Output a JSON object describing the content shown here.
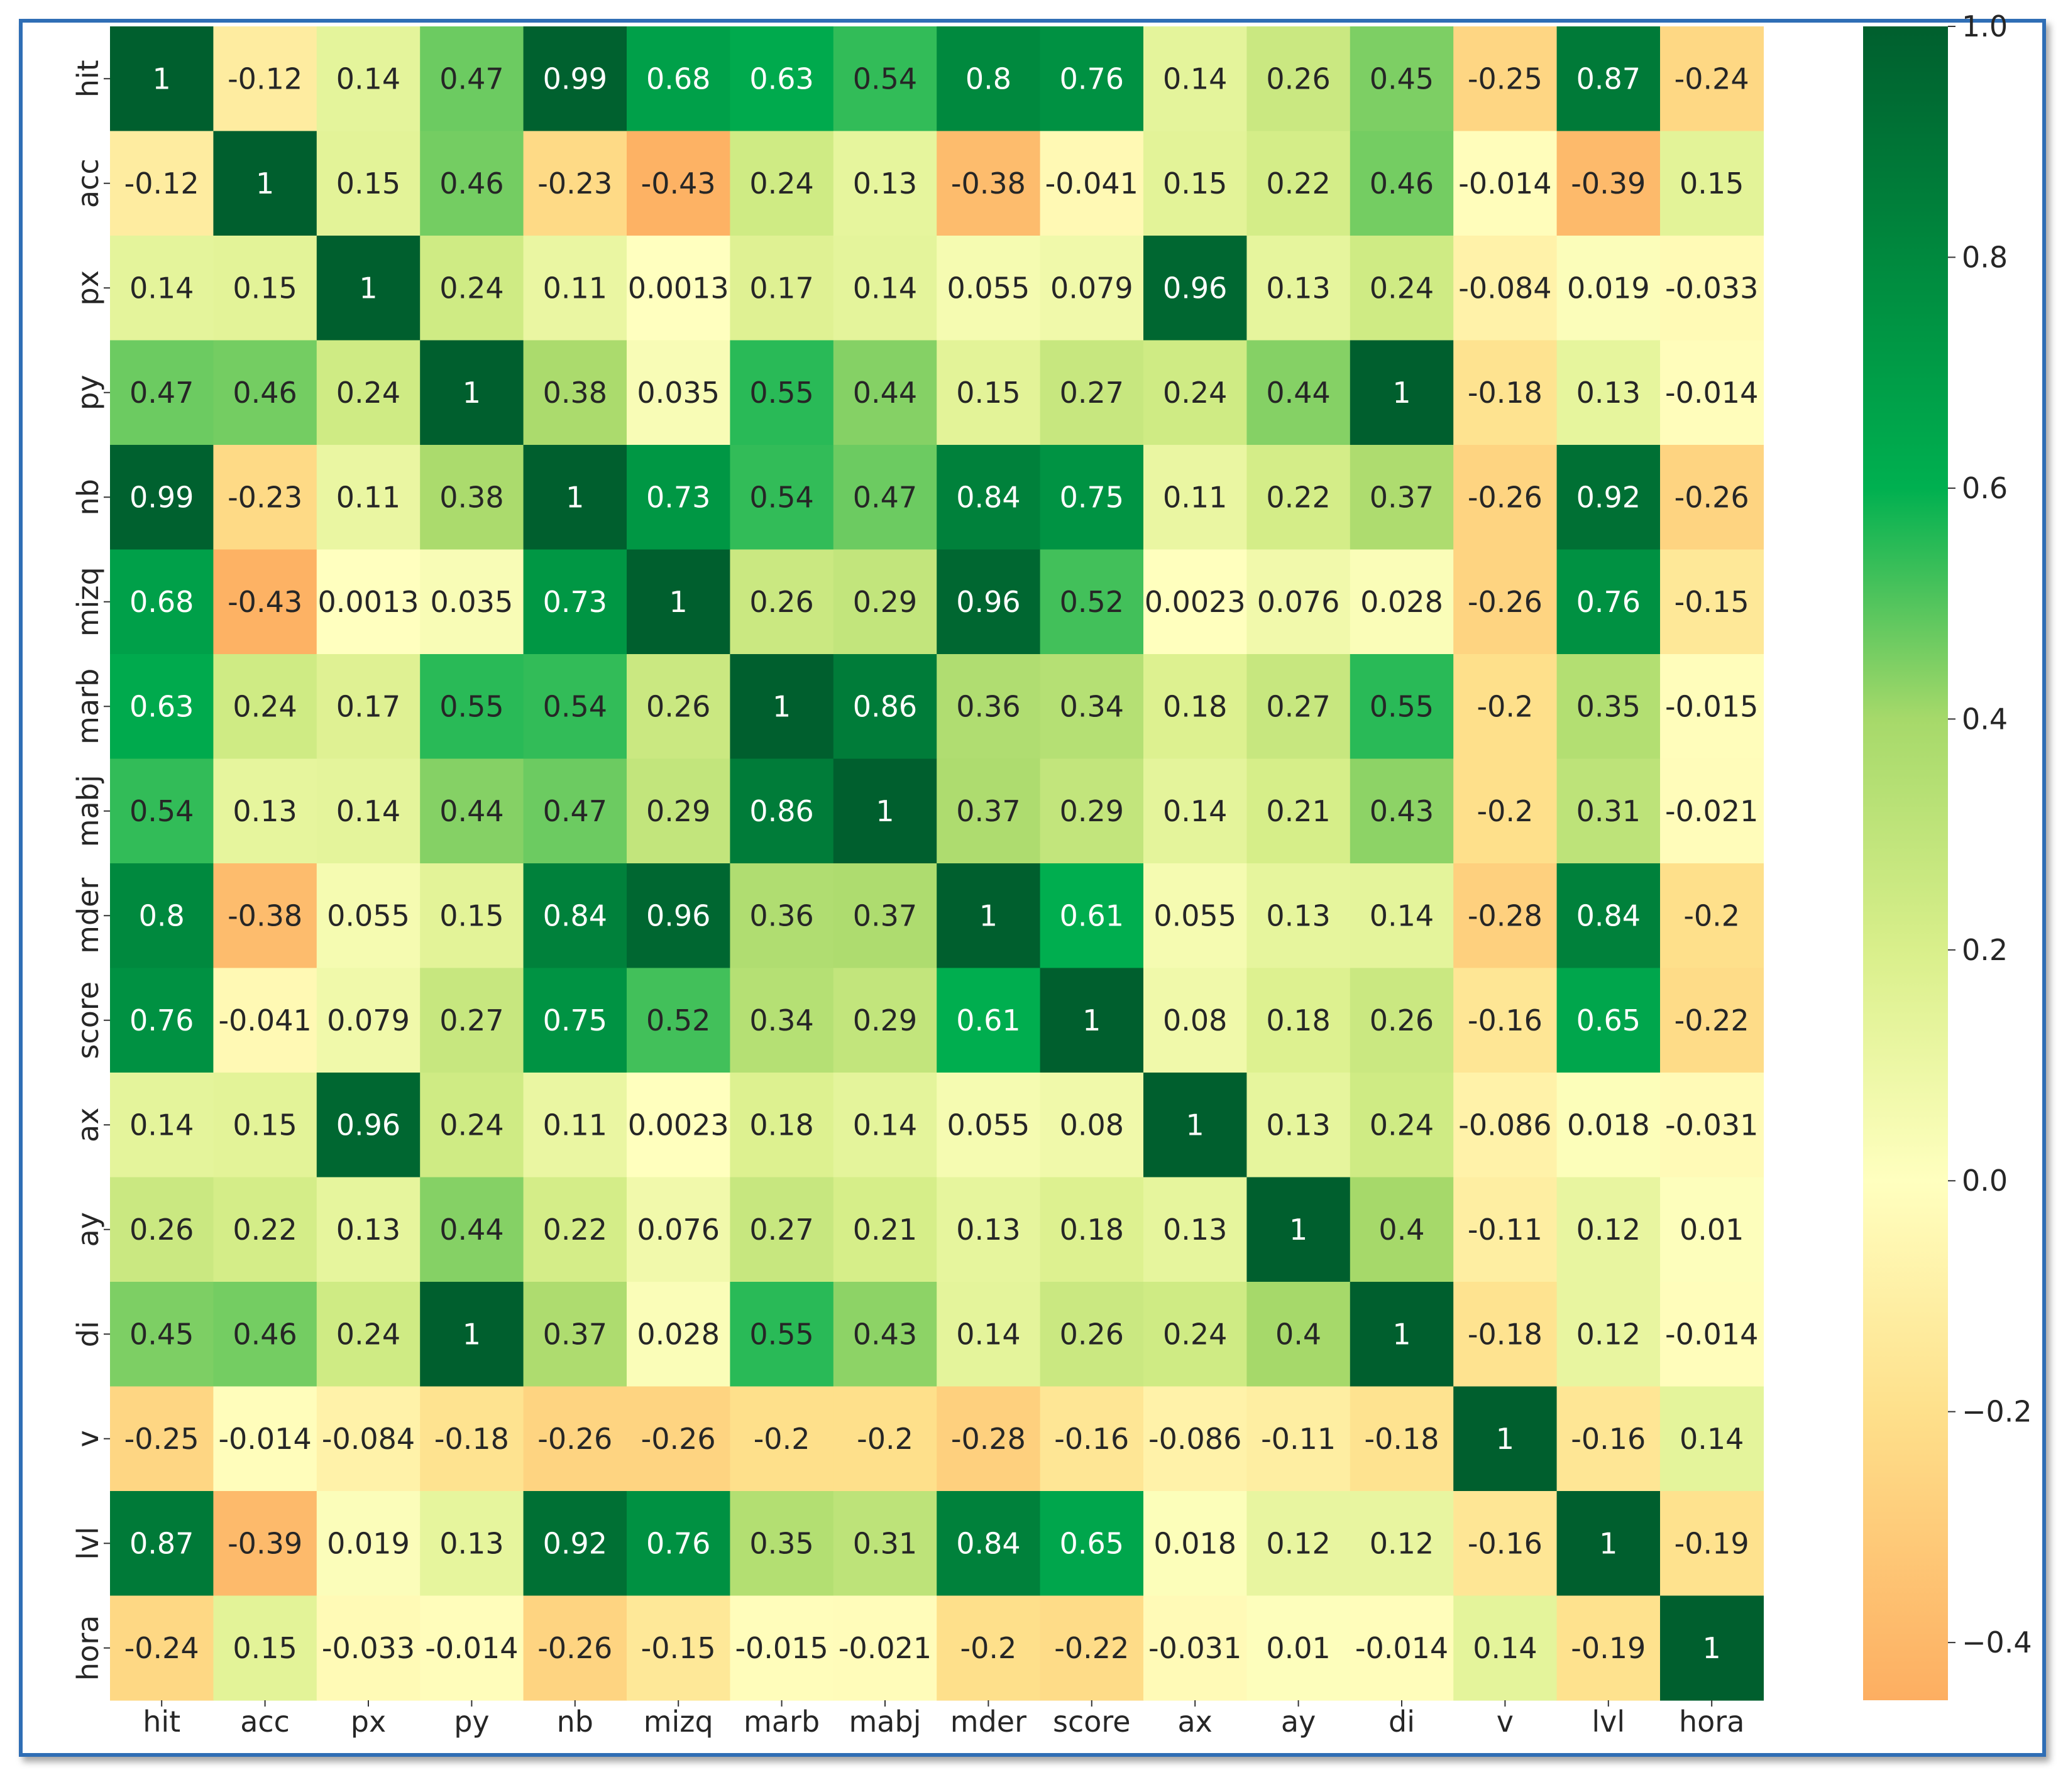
{
  "chart_data": {
    "type": "heatmap",
    "title": "",
    "xlabel": "",
    "ylabel": "",
    "labels": [
      "hit",
      "acc",
      "px",
      "py",
      "nb",
      "mizq",
      "marb",
      "mabj",
      "mder",
      "score",
      "ax",
      "ay",
      "di",
      "v",
      "lvl",
      "hora"
    ],
    "cells": [
      [
        "1",
        "-0.12",
        "0.14",
        "0.47",
        "0.99",
        "0.68",
        "0.63",
        "0.54",
        "0.8",
        "0.76",
        "0.14",
        "0.26",
        "0.45",
        "-0.25",
        "0.87",
        "-0.24"
      ],
      [
        "-0.12",
        "1",
        "0.15",
        "0.46",
        "-0.23",
        "-0.43",
        "0.24",
        "0.13",
        "-0.38",
        "-0.041",
        "0.15",
        "0.22",
        "0.46",
        "-0.014",
        "-0.39",
        "0.15"
      ],
      [
        "0.14",
        "0.15",
        "1",
        "0.24",
        "0.11",
        "0.0013",
        "0.17",
        "0.14",
        "0.055",
        "0.079",
        "0.96",
        "0.13",
        "0.24",
        "-0.084",
        "0.019",
        "-0.033"
      ],
      [
        "0.47",
        "0.46",
        "0.24",
        "1",
        "0.38",
        "0.035",
        "0.55",
        "0.44",
        "0.15",
        "0.27",
        "0.24",
        "0.44",
        "1",
        "-0.18",
        "0.13",
        "-0.014"
      ],
      [
        "0.99",
        "-0.23",
        "0.11",
        "0.38",
        "1",
        "0.73",
        "0.54",
        "0.47",
        "0.84",
        "0.75",
        "0.11",
        "0.22",
        "0.37",
        "-0.26",
        "0.92",
        "-0.26"
      ],
      [
        "0.68",
        "-0.43",
        "0.0013",
        "0.035",
        "0.73",
        "1",
        "0.26",
        "0.29",
        "0.96",
        "0.52",
        "0.0023",
        "0.076",
        "0.028",
        "-0.26",
        "0.76",
        "-0.15"
      ],
      [
        "0.63",
        "0.24",
        "0.17",
        "0.55",
        "0.54",
        "0.26",
        "1",
        "0.86",
        "0.36",
        "0.34",
        "0.18",
        "0.27",
        "0.55",
        "-0.2",
        "0.35",
        "-0.015"
      ],
      [
        "0.54",
        "0.13",
        "0.14",
        "0.44",
        "0.47",
        "0.29",
        "0.86",
        "1",
        "0.37",
        "0.29",
        "0.14",
        "0.21",
        "0.43",
        "-0.2",
        "0.31",
        "-0.021"
      ],
      [
        "0.8",
        "-0.38",
        "0.055",
        "0.15",
        "0.84",
        "0.96",
        "0.36",
        "0.37",
        "1",
        "0.61",
        "0.055",
        "0.13",
        "0.14",
        "-0.28",
        "0.84",
        "-0.2"
      ],
      [
        "0.76",
        "-0.041",
        "0.079",
        "0.27",
        "0.75",
        "0.52",
        "0.34",
        "0.29",
        "0.61",
        "1",
        "0.08",
        "0.18",
        "0.26",
        "-0.16",
        "0.65",
        "-0.22"
      ],
      [
        "0.14",
        "0.15",
        "0.96",
        "0.24",
        "0.11",
        "0.0023",
        "0.18",
        "0.14",
        "0.055",
        "0.08",
        "1",
        "0.13",
        "0.24",
        "-0.086",
        "0.018",
        "-0.031"
      ],
      [
        "0.26",
        "0.22",
        "0.13",
        "0.44",
        "0.22",
        "0.076",
        "0.27",
        "0.21",
        "0.13",
        "0.18",
        "0.13",
        "1",
        "0.4",
        "-0.11",
        "0.12",
        "0.01"
      ],
      [
        "0.45",
        "0.46",
        "0.24",
        "1",
        "0.37",
        "0.028",
        "0.55",
        "0.43",
        "0.14",
        "0.26",
        "0.24",
        "0.4",
        "1",
        "-0.18",
        "0.12",
        "-0.014"
      ],
      [
        "-0.25",
        "-0.014",
        "-0.084",
        "-0.18",
        "-0.26",
        "-0.26",
        "-0.2",
        "-0.2",
        "-0.28",
        "-0.16",
        "-0.086",
        "-0.11",
        "-0.18",
        "1",
        "-0.16",
        "0.14"
      ],
      [
        "0.87",
        "-0.39",
        "0.019",
        "0.13",
        "0.92",
        "0.76",
        "0.35",
        "0.31",
        "0.84",
        "0.65",
        "0.018",
        "0.12",
        "0.12",
        "-0.16",
        "1",
        "-0.19"
      ],
      [
        "-0.24",
        "0.15",
        "-0.033",
        "-0.014",
        "-0.26",
        "-0.15",
        "-0.015",
        "-0.021",
        "-0.2",
        "-0.22",
        "-0.031",
        "0.01",
        "-0.014",
        "0.14",
        "-0.19",
        "1"
      ]
    ],
    "colorbar": {
      "range": [
        -0.45,
        1.0
      ],
      "ticks": [
        1.0,
        0.8,
        0.6,
        0.4,
        0.2,
        0.0,
        -0.2,
        -0.4
      ],
      "tick_labels": [
        "1.0",
        "0.8",
        "0.6",
        "0.4",
        "0.2",
        "0.0",
        "−0.2",
        "−0.4"
      ]
    },
    "colormap": [
      {
        "v": -0.45,
        "color": "#fdae61"
      },
      {
        "v": -0.2,
        "color": "#fee08b"
      },
      {
        "v": 0.0,
        "color": "#ffffbf"
      },
      {
        "v": 0.2,
        "color": "#d9ef8b"
      },
      {
        "v": 0.4,
        "color": "#a6d96a"
      },
      {
        "v": 0.6,
        "color": "#00b050"
      },
      {
        "v": 0.8,
        "color": "#00893e"
      },
      {
        "v": 1.0,
        "color": "#005f2e"
      }
    ],
    "dark_text_color": "#262626",
    "light_text_color": "#ffffff"
  }
}
